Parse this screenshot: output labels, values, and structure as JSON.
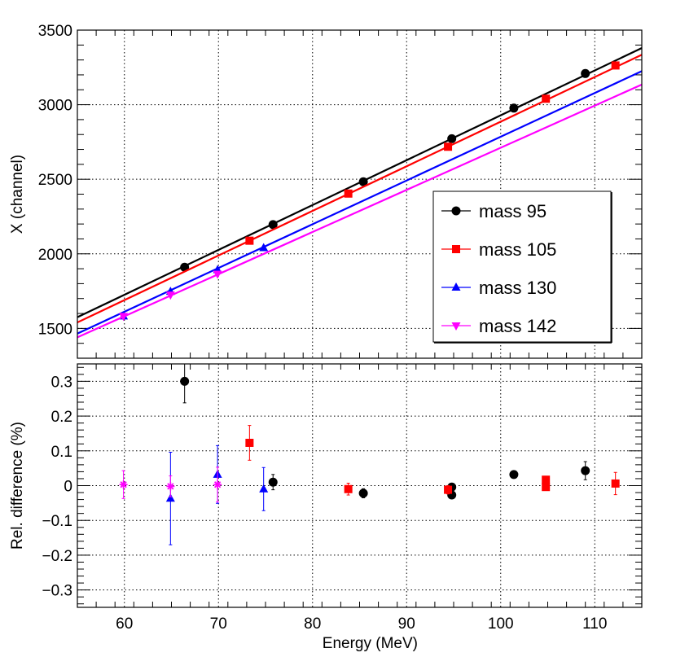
{
  "chart_data": [
    {
      "id": "top",
      "type": "scatter",
      "title": "",
      "xlabel": "",
      "ylabel": "X (channel)",
      "xlim": [
        55,
        115
      ],
      "ylim": [
        1300,
        3500
      ],
      "xticks": [
        60,
        70,
        80,
        90,
        100,
        110
      ],
      "yticks": [
        1500,
        2000,
        2500,
        3000,
        3500
      ],
      "yticklabels": [
        "1500",
        "2000",
        "2500",
        "3000",
        "3500"
      ],
      "grid": true,
      "legend_position": "center-right",
      "series": [
        {
          "name": "mass 95",
          "legend": "mass 95",
          "color": "#000000",
          "marker": "circle",
          "x": [
            66.4,
            75.8,
            85.4,
            94.8,
            101.4,
            109.0
          ],
          "y": [
            1910,
            2196,
            2483,
            2772,
            2977,
            3209
          ],
          "fit": {
            "x": [
              55,
              115
            ],
            "y": [
              1575,
              3380
            ]
          }
        },
        {
          "name": "mass 105",
          "legend": "mass 105",
          "color": "#ff0000",
          "marker": "square",
          "x": [
            73.3,
            83.8,
            94.4,
            104.8,
            112.2
          ],
          "y": [
            2088,
            2404,
            2718,
            3040,
            3263
          ],
          "fit": {
            "x": [
              55,
              115
            ],
            "y": [
              1540,
              3335
            ]
          }
        },
        {
          "name": "mass 130",
          "legend": "mass 130",
          "color": "#0000ff",
          "marker": "triangle-up",
          "x": [
            59.9,
            64.9,
            69.9,
            74.8
          ],
          "y": [
            1582,
            1747,
            1892,
            2040
          ],
          "fit": {
            "x": [
              55,
              115
            ],
            "y": [
              1465,
              3225
            ]
          }
        },
        {
          "name": "mass 142",
          "legend": "mass 142",
          "color": "#ff00ff",
          "marker": "triangle-down",
          "x": [
            59.9,
            64.9,
            69.9
          ],
          "y": [
            1582,
            1725,
            1865
          ],
          "fit": {
            "x": [
              55,
              115
            ],
            "y": [
              1440,
              3135
            ]
          }
        }
      ]
    },
    {
      "id": "bottom",
      "type": "scatter",
      "title": "",
      "xlabel": "Energy (MeV)",
      "ylabel": "Rel. difference (%)",
      "xlim": [
        55,
        115
      ],
      "ylim": [
        -0.35,
        0.35
      ],
      "xticks": [
        60,
        70,
        80,
        90,
        100,
        110
      ],
      "xticklabels": [
        "60",
        "70",
        "80",
        "90",
        "100",
        "110"
      ],
      "yticks": [
        -0.3,
        -0.2,
        -0.1,
        0,
        0.1,
        0.2,
        0.3
      ],
      "yticklabels": [
        "−0.3",
        "−0.2",
        "−0.1",
        "0",
        "0.1",
        "0.2",
        "0.3"
      ],
      "grid": true,
      "series": [
        {
          "name": "mass 95",
          "color": "#000000",
          "marker": "circle",
          "x": [
            66.4,
            75.8,
            85.4,
            94.8,
            94.8,
            101.4,
            109.0
          ],
          "y": [
            0.3,
            0.01,
            -0.022,
            -0.004,
            -0.027,
            0.032,
            0.043
          ],
          "err": [
            0.062,
            0.022,
            0.013,
            0.009,
            0.009,
            0.008,
            0.026
          ]
        },
        {
          "name": "mass 105",
          "color": "#ff0000",
          "marker": "square",
          "x": [
            73.3,
            83.8,
            94.4,
            104.8,
            104.8,
            112.2
          ],
          "y": [
            0.123,
            -0.01,
            -0.012,
            0.017,
            -0.004,
            0.006
          ],
          "err": [
            0.05,
            0.017,
            0.012,
            0.01,
            0.01,
            0.032
          ]
        },
        {
          "name": "mass 130",
          "color": "#0000ff",
          "marker": "triangle-up",
          "x": [
            64.9,
            69.9,
            74.8
          ],
          "y": [
            -0.037,
            0.032,
            -0.01
          ],
          "err": [
            0.133,
            0.083,
            0.062
          ]
        },
        {
          "name": "mass 142",
          "color": "#ff00ff",
          "marker": "star",
          "x": [
            59.9,
            64.9,
            69.9
          ],
          "y": [
            0.003,
            -0.002,
            0.003
          ],
          "err": [
            0.04,
            0.03,
            0.05
          ]
        }
      ]
    }
  ]
}
